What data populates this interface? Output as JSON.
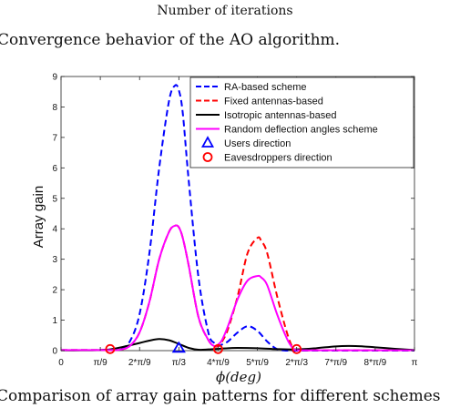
{
  "captions": {
    "prev_axis_label": "Number of iterations",
    "prev_figure": "Convergence behavior of the AO algorithm.",
    "figure": "Comparison of array gain patterns for different schemes"
  },
  "chart_data": {
    "type": "line",
    "xlabel": "ϕ(deg)",
    "ylabel": "Array gain",
    "xlim": [
      0,
      180
    ],
    "ylim": [
      0,
      9
    ],
    "x_ticks": [
      {
        "value": 0,
        "label": "0"
      },
      {
        "value": 20,
        "label": "π/9"
      },
      {
        "value": 40,
        "label": "2*π/9"
      },
      {
        "value": 60,
        "label": "π/3"
      },
      {
        "value": 80,
        "label": "4*π/9"
      },
      {
        "value": 100,
        "label": "5*π/9"
      },
      {
        "value": 120,
        "label": "2*π/3"
      },
      {
        "value": 140,
        "label": "7*π/9"
      },
      {
        "value": 160,
        "label": "8*π/9"
      },
      {
        "value": 180,
        "label": "π"
      }
    ],
    "y_ticks": [
      0,
      1,
      2,
      3,
      4,
      5,
      6,
      7,
      8,
      9
    ],
    "legend_position": "top-right",
    "series": [
      {
        "name": "RA-based scheme",
        "color": "#0000ff",
        "dash": "dashed",
        "x": [
          0,
          10,
          20,
          25,
          30,
          35,
          40,
          45,
          50,
          55,
          58,
          60,
          62,
          65,
          70,
          75,
          78,
          80,
          82,
          85,
          90,
          95,
          100,
          105,
          110,
          115,
          120,
          130,
          140,
          150,
          160,
          170,
          180
        ],
        "y": [
          0.02,
          0.02,
          0.02,
          0.02,
          0.05,
          0.3,
          1.2,
          3.2,
          6.0,
          8.2,
          8.7,
          8.55,
          7.8,
          5.6,
          2.4,
          0.6,
          0.25,
          0.15,
          0.2,
          0.3,
          0.6,
          0.8,
          0.65,
          0.3,
          0.05,
          0.0,
          0.0,
          0.0,
          0.0,
          0.0,
          0.0,
          0.0,
          0.0
        ]
      },
      {
        "name": "Fixed antennas-based",
        "color": "#ff0000",
        "dash": "dashed",
        "x": [
          0,
          10,
          20,
          25,
          30,
          35,
          40,
          45,
          50,
          55,
          58,
          60,
          62,
          65,
          70,
          75,
          78,
          80,
          82,
          85,
          90,
          95,
          100,
          102,
          105,
          110,
          115,
          118,
          120,
          125,
          130,
          140,
          150,
          160,
          170,
          180
        ],
        "y": [
          0.02,
          0.02,
          0.02,
          0.02,
          0.03,
          0.15,
          0.6,
          1.6,
          3.0,
          3.9,
          4.1,
          4.05,
          3.7,
          2.8,
          1.1,
          0.35,
          0.15,
          0.15,
          0.3,
          0.7,
          1.8,
          3.2,
          3.7,
          3.6,
          3.2,
          1.8,
          0.6,
          0.1,
          0.02,
          0.01,
          0.01,
          0.01,
          0.01,
          0.01,
          0.01,
          0.01
        ]
      },
      {
        "name": "Isotropic antennas-based",
        "color": "#000000",
        "dash": "solid",
        "x": [
          0,
          10,
          20,
          25,
          30,
          40,
          45,
          50,
          55,
          60,
          65,
          70,
          75,
          80,
          85,
          90,
          100,
          110,
          120,
          130,
          140,
          150,
          160,
          170,
          180
        ],
        "y": [
          0.01,
          0.01,
          0.02,
          0.04,
          0.1,
          0.25,
          0.33,
          0.38,
          0.34,
          0.22,
          0.09,
          0.03,
          0.04,
          0.06,
          0.08,
          0.09,
          0.08,
          0.05,
          0.04,
          0.08,
          0.14,
          0.15,
          0.11,
          0.06,
          0.02
        ]
      },
      {
        "name": "Random deflection angles scheme",
        "color": "#ff00ff",
        "dash": "solid",
        "x": [
          0,
          10,
          20,
          25,
          30,
          35,
          40,
          45,
          50,
          55,
          58,
          60,
          62,
          65,
          70,
          75,
          78,
          80,
          82,
          85,
          90,
          95,
          100,
          102,
          105,
          110,
          115,
          118,
          120,
          125,
          130,
          140,
          150,
          160,
          170,
          180
        ],
        "y": [
          0.02,
          0.02,
          0.02,
          0.02,
          0.03,
          0.15,
          0.6,
          1.6,
          3.0,
          3.9,
          4.1,
          4.05,
          3.7,
          2.8,
          1.1,
          0.35,
          0.15,
          0.2,
          0.35,
          0.8,
          1.7,
          2.3,
          2.45,
          2.4,
          2.15,
          1.2,
          0.4,
          0.08,
          0.02,
          0.01,
          0.01,
          0.01,
          0.01,
          0.01,
          0.01,
          0.01
        ]
      }
    ],
    "markers": [
      {
        "name": "Users direction",
        "shape": "triangle",
        "color": "#0000ff",
        "points": [
          [
            60,
            0.05
          ]
        ]
      },
      {
        "name": "Eavesdroppers direction",
        "shape": "circle",
        "color": "#ff0000",
        "points": [
          [
            25,
            0.05
          ],
          [
            80,
            0.05
          ],
          [
            120,
            0.05
          ]
        ]
      }
    ]
  }
}
